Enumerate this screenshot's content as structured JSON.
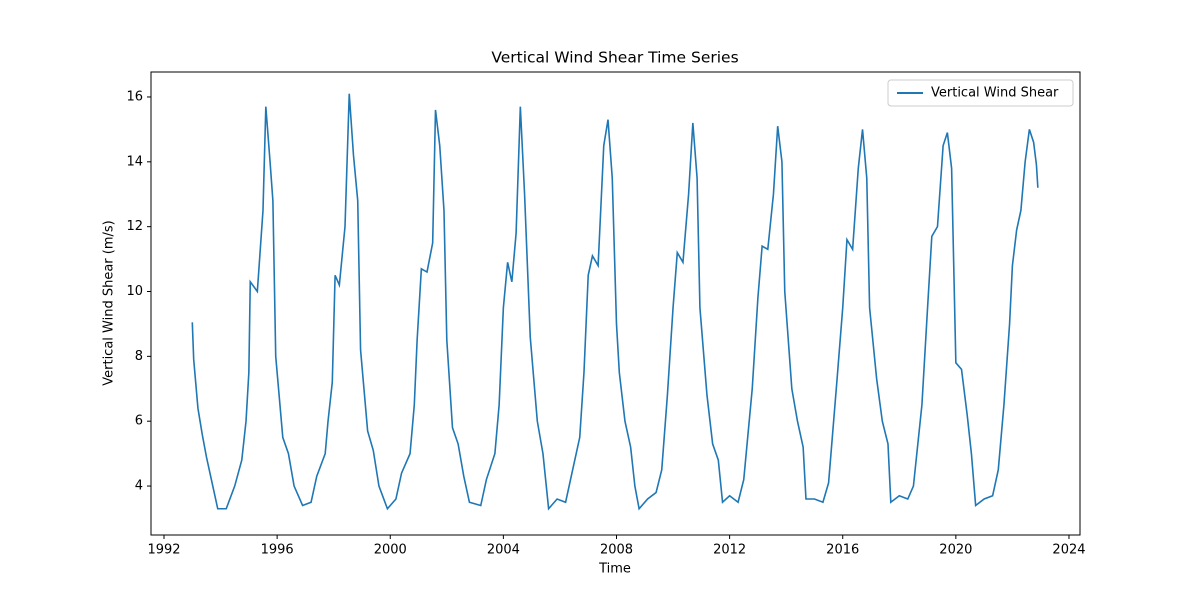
{
  "chart_data": {
    "type": "line",
    "title": "Vertical Wind Shear Time Series",
    "x_label": "Time",
    "y_label": "Vertical Wind Shear (m/s)",
    "x": [
      1993.0,
      1993.05,
      1993.2,
      1993.35,
      1993.5,
      1993.7,
      1993.9,
      1994.2,
      1994.5,
      1994.75,
      1994.9,
      1995.0,
      1995.05,
      1995.3,
      1995.5,
      1995.6,
      1995.75,
      1995.85,
      1995.95,
      1996.2,
      1996.4,
      1996.6,
      1996.9,
      1997.2,
      1997.4,
      1997.7,
      1997.8,
      1997.95,
      1998.05,
      1998.2,
      1998.4,
      1998.55,
      1998.7,
      1998.85,
      1998.95,
      1999.2,
      1999.4,
      1999.6,
      1999.9,
      2000.2,
      2000.4,
      2000.7,
      2000.85,
      2000.95,
      2001.1,
      2001.3,
      2001.5,
      2001.6,
      2001.75,
      2001.9,
      2002.0,
      2002.2,
      2002.4,
      2002.6,
      2002.8,
      2003.2,
      2003.4,
      2003.7,
      2003.85,
      2004.0,
      2004.15,
      2004.3,
      2004.45,
      2004.6,
      2004.75,
      2004.95,
      2005.2,
      2005.4,
      2005.6,
      2005.9,
      2006.2,
      2006.4,
      2006.7,
      2006.85,
      2007.0,
      2007.15,
      2007.35,
      2007.55,
      2007.7,
      2007.85,
      2008.0,
      2008.1,
      2008.3,
      2008.5,
      2008.65,
      2008.8,
      2009.1,
      2009.4,
      2009.6,
      2009.8,
      2010.0,
      2010.15,
      2010.35,
      2010.55,
      2010.7,
      2010.85,
      2010.95,
      2011.2,
      2011.4,
      2011.6,
      2011.75,
      2012.0,
      2012.3,
      2012.5,
      2012.8,
      2013.0,
      2013.15,
      2013.35,
      2013.55,
      2013.7,
      2013.85,
      2013.95,
      2014.2,
      2014.4,
      2014.6,
      2014.7,
      2015.0,
      2015.3,
      2015.5,
      2015.8,
      2016.0,
      2016.15,
      2016.35,
      2016.55,
      2016.7,
      2016.85,
      2016.95,
      2017.2,
      2017.4,
      2017.6,
      2017.7,
      2018.0,
      2018.3,
      2018.5,
      2018.8,
      2019.0,
      2019.15,
      2019.35,
      2019.55,
      2019.7,
      2019.85,
      2020.0,
      2020.2,
      2020.4,
      2020.55,
      2020.7,
      2021.0,
      2021.3,
      2021.5,
      2021.7,
      2021.9,
      2022.0,
      2022.15,
      2022.3,
      2022.45,
      2022.6,
      2022.75,
      2022.85,
      2022.9
    ],
    "series": [
      {
        "name": "Vertical Wind Shear",
        "color": "#1f77b4",
        "values": [
          9.05,
          7.9,
          6.4,
          5.6,
          4.9,
          4.1,
          3.3,
          3.3,
          4.0,
          4.8,
          6.0,
          7.5,
          10.3,
          10.0,
          12.5,
          15.7,
          14.0,
          12.8,
          8.0,
          5.5,
          5.0,
          4.0,
          3.4,
          3.5,
          4.3,
          5.0,
          6.0,
          7.2,
          10.5,
          10.2,
          12.0,
          16.1,
          14.2,
          12.8,
          8.2,
          5.7,
          5.1,
          4.0,
          3.3,
          3.6,
          4.4,
          5.0,
          6.5,
          8.5,
          10.7,
          10.6,
          11.5,
          15.6,
          14.5,
          12.5,
          8.5,
          5.8,
          5.3,
          4.3,
          3.5,
          3.4,
          4.2,
          5.0,
          6.5,
          9.5,
          10.9,
          10.3,
          11.8,
          15.7,
          13.0,
          8.6,
          6.0,
          5.0,
          3.3,
          3.6,
          3.5,
          4.3,
          5.5,
          7.5,
          10.5,
          11.1,
          10.8,
          14.5,
          15.3,
          13.5,
          9.0,
          7.5,
          6.0,
          5.2,
          4.0,
          3.3,
          3.6,
          3.8,
          4.5,
          6.8,
          9.5,
          11.2,
          10.9,
          13.0,
          15.2,
          13.5,
          9.5,
          6.8,
          5.3,
          4.8,
          3.5,
          3.7,
          3.5,
          4.2,
          7.0,
          9.8,
          11.4,
          11.3,
          13.0,
          15.1,
          14.0,
          10.0,
          7.0,
          6.0,
          5.2,
          3.6,
          3.6,
          3.5,
          4.1,
          7.3,
          9.5,
          11.6,
          11.3,
          13.8,
          15.0,
          13.5,
          9.5,
          7.3,
          6.0,
          5.3,
          3.5,
          3.7,
          3.6,
          4.0,
          6.5,
          9.5,
          11.7,
          12.0,
          14.5,
          14.9,
          13.8,
          7.8,
          7.6,
          6.2,
          5.0,
          3.4,
          3.6,
          3.7,
          4.5,
          6.5,
          9.0,
          10.8,
          11.9,
          12.5,
          14.0,
          15.0,
          14.6,
          13.9,
          13.2
        ]
      }
    ],
    "xlim": [
      1991.54,
      2024.39
    ],
    "ylim": [
      2.49,
      16.77
    ],
    "xticks": [
      1992,
      1996,
      2000,
      2004,
      2008,
      2012,
      2016,
      2020,
      2024
    ],
    "yticks": [
      4,
      6,
      8,
      10,
      12,
      14,
      16
    ],
    "legend": "upper right"
  }
}
